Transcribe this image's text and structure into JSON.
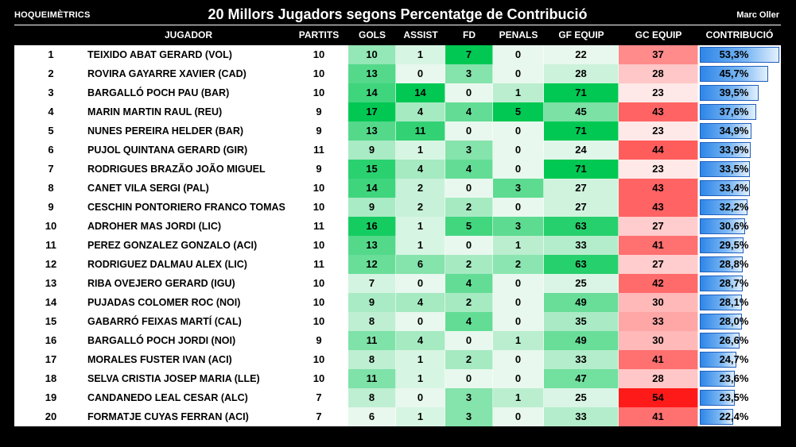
{
  "header": {
    "brand": "HOQUEIMÈTRICS",
    "title": "20 Millors Jugadors segons Percentatge de Contribució",
    "author": "Marc Oller"
  },
  "columns": [
    "JUGADOR",
    "PARTITS",
    "GOLS",
    "ASSIST",
    "FD",
    "PENALS",
    "GF EQUIP",
    "GC EQUIP",
    "CONTRIBUCIÓ"
  ],
  "colors": {
    "green_max": "#00c853",
    "green_min": "#e8f8ee",
    "red_max": "#ff1a1a",
    "red_min": "#ffe8e8",
    "bar": "#2e86e8"
  },
  "chart_data": {
    "type": "table",
    "title": "20 Millors Jugadors segons Percentatge de Contribució",
    "rows": [
      {
        "rank": "1",
        "player": "TEIXIDO ABAT GERARD (VOL)",
        "partits": 10,
        "gols": 10,
        "assist": 1,
        "fd": 7,
        "penals": 0,
        "gf": 22,
        "gc": 37,
        "contrib": 53.3,
        "contrib_label": "53,3%"
      },
      {
        "rank": "2",
        "player": "ROVIRA GAYARRE XAVIER (CAD)",
        "partits": 10,
        "gols": 13,
        "assist": 0,
        "fd": 3,
        "penals": 0,
        "gf": 28,
        "gc": 28,
        "contrib": 45.7,
        "contrib_label": "45,7%"
      },
      {
        "rank": "3",
        "player": "BARGALLÓ POCH PAU (BAR)",
        "partits": 10,
        "gols": 14,
        "assist": 14,
        "fd": 0,
        "penals": 1,
        "gf": 71,
        "gc": 23,
        "contrib": 39.5,
        "contrib_label": "39,5%"
      },
      {
        "rank": "4",
        "player": "MARIN MARTIN RAUL (REU)",
        "partits": 9,
        "gols": 17,
        "assist": 4,
        "fd": 4,
        "penals": 5,
        "gf": 45,
        "gc": 43,
        "contrib": 37.6,
        "contrib_label": "37,6%"
      },
      {
        "rank": "5",
        "player": "NUNES PEREIRA HELDER (BAR)",
        "partits": 9,
        "gols": 13,
        "assist": 11,
        "fd": 0,
        "penals": 0,
        "gf": 71,
        "gc": 23,
        "contrib": 34.9,
        "contrib_label": "34,9%"
      },
      {
        "rank": "6",
        "player": "PUJOL QUINTANA GERARD (GIR)",
        "partits": 11,
        "gols": 9,
        "assist": 1,
        "fd": 3,
        "penals": 0,
        "gf": 24,
        "gc": 44,
        "contrib": 33.9,
        "contrib_label": "33,9%"
      },
      {
        "rank": "7",
        "player": "RODRIGUES BRAZÃO JOÃO MIGUEL  (BAR)",
        "partits": 9,
        "gols": 15,
        "assist": 4,
        "fd": 4,
        "penals": 0,
        "gf": 71,
        "gc": 23,
        "contrib": 33.5,
        "contrib_label": "33,5%"
      },
      {
        "rank": "8",
        "player": "CANET VILA SERGI (PAL)",
        "partits": 10,
        "gols": 14,
        "assist": 2,
        "fd": 0,
        "penals": 3,
        "gf": 27,
        "gc": 43,
        "contrib": 33.4,
        "contrib_label": "33,4%"
      },
      {
        "rank": "9",
        "player": "CESCHIN PONTORIERO FRANCO TOMAS (PAL)",
        "partits": 10,
        "gols": 9,
        "assist": 2,
        "fd": 2,
        "penals": 0,
        "gf": 27,
        "gc": 43,
        "contrib": 32.2,
        "contrib_label": "32,2%"
      },
      {
        "rank": "10",
        "player": "ADROHER MAS JORDI (LIC)",
        "partits": 11,
        "gols": 16,
        "assist": 1,
        "fd": 5,
        "penals": 3,
        "gf": 63,
        "gc": 27,
        "contrib": 30.6,
        "contrib_label": "30,6%"
      },
      {
        "rank": "11",
        "player": "PEREZ GONZALEZ GONZALO (ACI)",
        "partits": 10,
        "gols": 13,
        "assist": 1,
        "fd": 0,
        "penals": 1,
        "gf": 33,
        "gc": 41,
        "contrib": 29.5,
        "contrib_label": "29,5%"
      },
      {
        "rank": "12",
        "player": "RODRIGUEZ DALMAU ALEX (LIC)",
        "partits": 11,
        "gols": 12,
        "assist": 6,
        "fd": 2,
        "penals": 2,
        "gf": 63,
        "gc": 27,
        "contrib": 28.8,
        "contrib_label": "28,8%"
      },
      {
        "rank": "13",
        "player": "RIBA OVEJERO GERARD (IGU)",
        "partits": 10,
        "gols": 7,
        "assist": 0,
        "fd": 4,
        "penals": 0,
        "gf": 25,
        "gc": 42,
        "contrib": 28.7,
        "contrib_label": "28,7%"
      },
      {
        "rank": "14",
        "player": "PUJADAS COLOMER ROC (NOI)",
        "partits": 10,
        "gols": 9,
        "assist": 4,
        "fd": 2,
        "penals": 0,
        "gf": 49,
        "gc": 30,
        "contrib": 28.1,
        "contrib_label": "28,1%"
      },
      {
        "rank": "15",
        "player": "GABARRÓ FEIXAS MARTÍ (CAL)",
        "partits": 10,
        "gols": 8,
        "assist": 0,
        "fd": 4,
        "penals": 0,
        "gf": 35,
        "gc": 33,
        "contrib": 28.0,
        "contrib_label": "28,0%"
      },
      {
        "rank": "16",
        "player": "BARGALLÓ POCH JORDI (NOI)",
        "partits": 9,
        "gols": 11,
        "assist": 4,
        "fd": 0,
        "penals": 1,
        "gf": 49,
        "gc": 30,
        "contrib": 26.6,
        "contrib_label": "26,6%"
      },
      {
        "rank": "17",
        "player": "MORALES FUSTER IVAN (ACI)",
        "partits": 10,
        "gols": 8,
        "assist": 1,
        "fd": 2,
        "penals": 0,
        "gf": 33,
        "gc": 41,
        "contrib": 24.7,
        "contrib_label": "24,7%"
      },
      {
        "rank": "18",
        "player": "SELVA CRISTIA JOSEP MARIA (LLE)",
        "partits": 10,
        "gols": 11,
        "assist": 1,
        "fd": 0,
        "penals": 0,
        "gf": 47,
        "gc": 28,
        "contrib": 23.6,
        "contrib_label": "23,6%"
      },
      {
        "rank": "19",
        "player": "CANDANEDO LEAL CESAR (ALC)",
        "partits": 7,
        "gols": 8,
        "assist": 0,
        "fd": 3,
        "penals": 1,
        "gf": 25,
        "gc": 54,
        "contrib": 23.5,
        "contrib_label": "23,5%"
      },
      {
        "rank": "20",
        "player": "FORMATJE CUYAS FERRAN (ACI)",
        "partits": 7,
        "gols": 6,
        "assist": 1,
        "fd": 3,
        "penals": 0,
        "gf": 33,
        "gc": 41,
        "contrib": 22.4,
        "contrib_label": "22,4%"
      }
    ]
  }
}
